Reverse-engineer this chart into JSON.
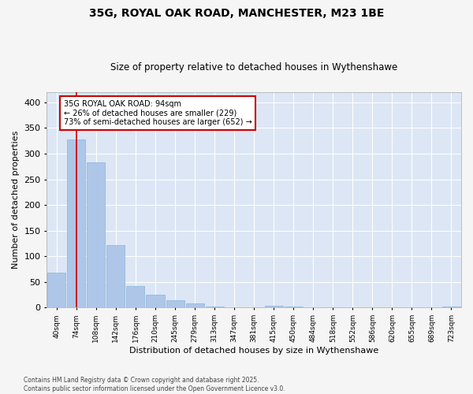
{
  "title1": "35G, ROYAL OAK ROAD, MANCHESTER, M23 1BE",
  "title2": "Size of property relative to detached houses in Wythenshawe",
  "xlabel": "Distribution of detached houses by size in Wythenshawe",
  "ylabel": "Number of detached properties",
  "bins": [
    "40sqm",
    "74sqm",
    "108sqm",
    "142sqm",
    "176sqm",
    "210sqm",
    "245sqm",
    "279sqm",
    "313sqm",
    "347sqm",
    "381sqm",
    "415sqm",
    "450sqm",
    "484sqm",
    "518sqm",
    "552sqm",
    "586sqm",
    "620sqm",
    "655sqm",
    "689sqm",
    "723sqm"
  ],
  "values": [
    68,
    328,
    283,
    122,
    42,
    25,
    15,
    8,
    2,
    0,
    0,
    3,
    2,
    0,
    0,
    0,
    0,
    0,
    0,
    0,
    2
  ],
  "bar_color": "#aec6e8",
  "bar_edge_color": "#8db4d8",
  "property_bin_index": 1,
  "annotation_title": "35G ROYAL OAK ROAD: 94sqm",
  "annotation_line1": "← 26% of detached houses are smaller (229)",
  "annotation_line2": "73% of semi-detached houses are larger (652) →",
  "annotation_box_color": "#ffffff",
  "annotation_box_edge": "#cc0000",
  "vline_color": "#cc0000",
  "background_color": "#dce6f5",
  "grid_color": "#ffffff",
  "fig_background": "#f5f5f5",
  "ylim": [
    0,
    420
  ],
  "yticks": [
    0,
    50,
    100,
    150,
    200,
    250,
    300,
    350,
    400
  ],
  "footer": "Contains HM Land Registry data © Crown copyright and database right 2025.\nContains public sector information licensed under the Open Government Licence v3.0."
}
